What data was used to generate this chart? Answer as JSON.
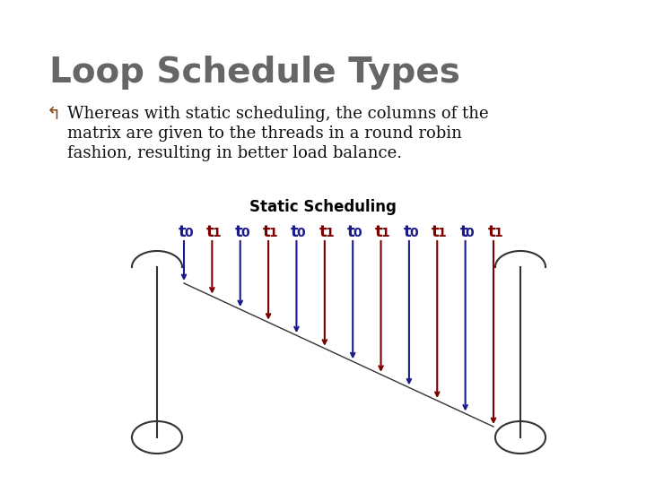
{
  "title": "Loop Schedule Types",
  "bullet_lines": [
    "Whereas with static scheduling, the columns of the",
    "matrix are given to the threads in a round robin",
    "fashion, resulting in better load balance."
  ],
  "diagram_title": "Static Scheduling",
  "background_color": "#ffffff",
  "title_color": "#666666",
  "text_color": "#111111",
  "bullet_color": "#8B4513",
  "t0_color": "#1a1a8a",
  "t1_color": "#7a0000",
  "diagram_title_color": "#000000",
  "n_columns": 12,
  "labels": [
    "t0",
    "t1",
    "t0",
    "t1",
    "t0",
    "t1",
    "t0",
    "t1",
    "t0",
    "t1",
    "t0",
    "t1"
  ],
  "title_fontsize": 28,
  "text_fontsize": 13,
  "diag_label_fontsize": 13
}
